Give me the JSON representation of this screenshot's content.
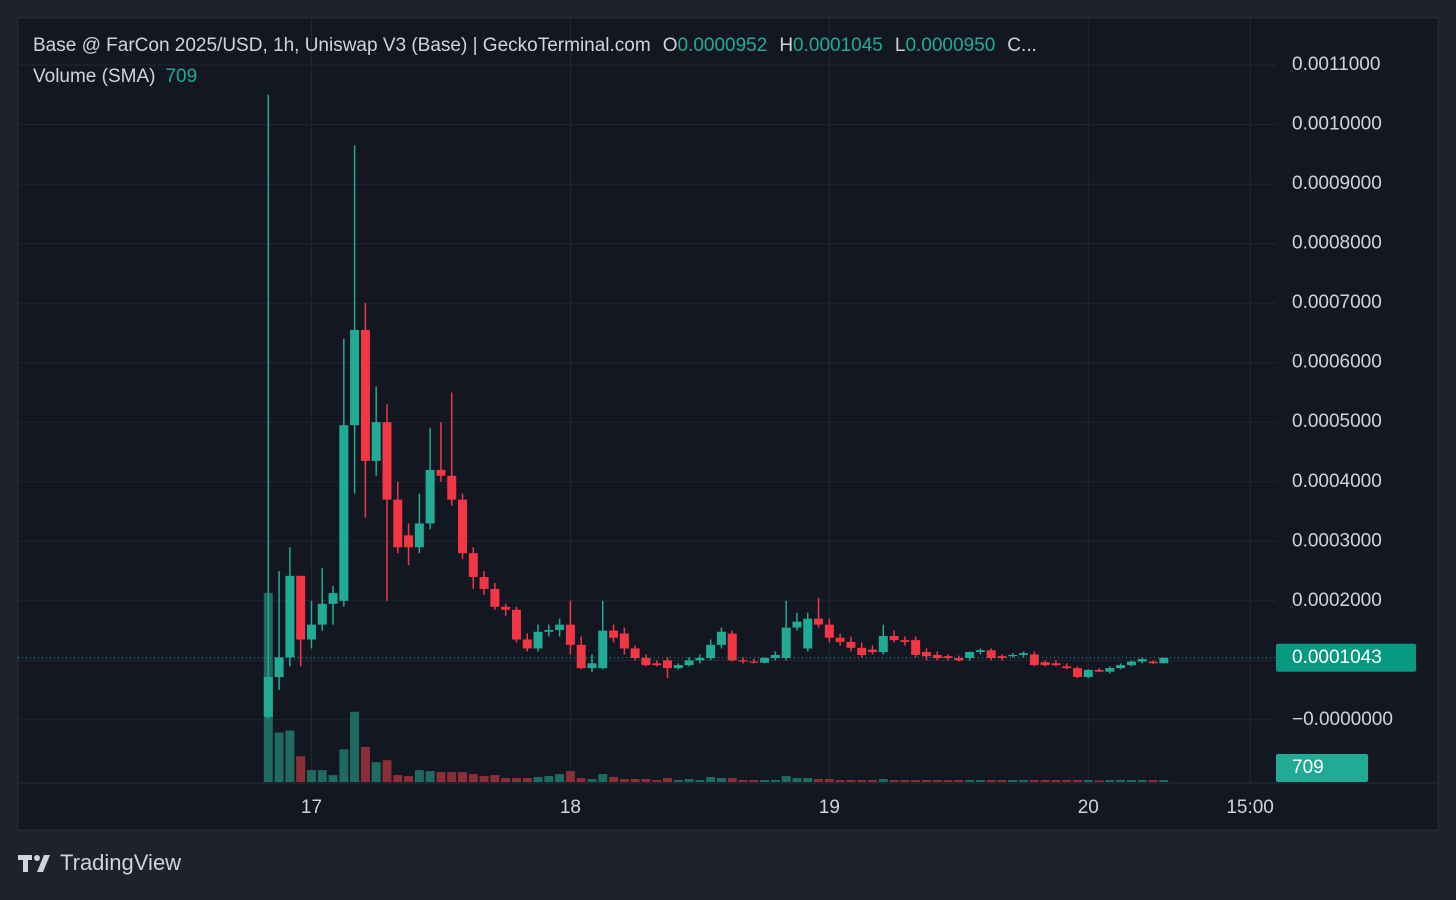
{
  "chart_data": {
    "type": "candlestick",
    "title": "Base @ FarCon 2025/USD, 1h, Uniswap V3 (Base) | GeckoTerminal.com",
    "ohlc_legend": [
      {
        "key": "O",
        "value": 9.52e-05,
        "label": "0.0000952"
      },
      {
        "key": "H",
        "value": 0.0001045,
        "label": "0.0001045"
      },
      {
        "key": "L",
        "value": 9.5e-05,
        "label": "0.0000950"
      },
      {
        "key": "C..."
      }
    ],
    "volume_title": "Volume (SMA)",
    "volume_sma": 709,
    "last_price": {
      "value": 0.0001043,
      "label": "0.0001043"
    },
    "up_color": "#22ab94",
    "down_color": "#f23645",
    "volume_up_color": "#1f6b61",
    "volume_down_color": "#8a2f38",
    "grid": true,
    "xlim": [
      -27.2,
      89.4
    ],
    "xticks": [
      {
        "value": 0,
        "label": "17"
      },
      {
        "value": 24,
        "label": "18"
      },
      {
        "value": 48,
        "label": "19"
      },
      {
        "value": 72,
        "label": "20"
      },
      {
        "value": 87,
        "label": "15:00"
      }
    ],
    "ylim": [
      -0.000106,
      0.001179
    ],
    "yticks": [
      {
        "value": 0,
        "label": "−0.0000000"
      },
      {
        "value": 0.0001,
        "label": "0.0001000"
      },
      {
        "value": 0.0002,
        "label": "0.0002000"
      },
      {
        "value": 0.0003,
        "label": "0.0003000"
      },
      {
        "value": 0.0004,
        "label": "0.0004000"
      },
      {
        "value": 0.0005,
        "label": "0.0005000"
      },
      {
        "value": 0.0006,
        "label": "0.0006000"
      },
      {
        "value": 0.0007,
        "label": "0.0007000"
      },
      {
        "value": 0.0008,
        "label": "0.0008000"
      },
      {
        "value": 0.0009,
        "label": "0.0009000"
      },
      {
        "value": 0.001,
        "label": "0.0010000"
      },
      {
        "value": 0.0011,
        "label": "0.0011000"
      }
    ],
    "vlim": [
      0,
      10000
    ],
    "x": [
      -4,
      -3,
      -2,
      -1,
      0,
      1,
      2,
      3,
      4,
      5,
      6,
      7,
      8,
      9,
      10,
      11,
      12,
      13,
      14,
      15,
      16,
      17,
      18,
      19,
      20,
      21,
      22,
      23,
      24,
      25,
      26,
      27,
      28,
      29,
      30,
      31,
      32,
      33,
      34,
      35,
      36,
      37,
      38,
      39,
      40,
      41,
      42,
      43,
      44,
      45,
      46,
      47,
      48,
      49,
      50,
      51,
      52,
      53,
      54,
      55,
      56,
      57,
      58,
      59,
      60,
      61,
      62,
      63,
      64,
      65,
      66,
      67,
      68,
      69,
      70,
      71,
      72,
      73,
      74,
      75,
      76,
      77,
      78,
      79
    ],
    "open": [
      5e-06,
      7.2e-05,
      0.000105,
      0.000242,
      0.000135,
      0.00016,
      0.000195,
      0.0002,
      0.000495,
      0.000655,
      0.000435,
      0.0005,
      0.00037,
      0.00031,
      0.00029,
      0.00033,
      0.00042,
      0.00041,
      0.00037,
      0.00028,
      0.00024,
      0.00022,
      0.00019,
      0.000185,
      0.000135,
      0.00012,
      0.000148,
      0.000151,
      0.00016,
      0.000126,
      8.7e-05,
      8.7e-05,
      0.00015,
      0.000145,
      0.00012,
      0.000104,
      9.5e-05,
      0.0001,
      8.7e-05,
      9.2e-05,
      0.0001,
      0.000104,
      0.000126,
      0.000145,
      0.0001,
      9.8e-05,
      9.6e-05,
      0.000104,
      0.000104,
      0.000155,
      0.00012,
      0.00017,
      0.00016,
      0.000138,
      0.000131,
      0.000121,
      0.000118,
      0.000114,
      0.000141,
      0.000134,
      0.000134,
      0.000114,
      0.000109,
      0.000107,
      0.000104,
      0.000104,
      0.000114,
      0.000117,
      0.000107,
      0.000107,
      0.000109,
      0.00011,
      9.7e-05,
      9.5e-05,
      9e-05,
      8.7e-05,
      7.2e-05,
      8.4e-05,
      8.1e-05,
      8.7e-05,
      9.2e-05,
      9.8e-05,
      9.8e-05,
      9.52e-05
    ],
    "high": [
      0.00105,
      0.00025,
      0.00029,
      0.000242,
      0.0002,
      0.000255,
      0.000225,
      0.00064,
      0.000965,
      0.0007,
      0.00056,
      0.00053,
      0.0004,
      0.00033,
      0.00038,
      0.00049,
      0.0005,
      0.00055,
      0.00038,
      0.00029,
      0.00025,
      0.00023,
      0.000195,
      0.00019,
      0.000145,
      0.00016,
      0.00016,
      0.00017,
      0.0002,
      0.00014,
      0.00011,
      0.0002,
      0.00016,
      0.000155,
      0.000125,
      0.00011,
      0.0001,
      0.000105,
      9.5e-05,
      0.000105,
      0.00011,
      0.000135,
      0.000155,
      0.00015,
      0.000105,
      0.000102,
      0.000105,
      0.000115,
      0.0002,
      0.00018,
      0.00018,
      0.000205,
      0.00017,
      0.000145,
      0.00014,
      0.00013,
      0.000125,
      0.00016,
      0.00015,
      0.00014,
      0.00014,
      0.00012,
      0.000115,
      0.00011,
      0.000108,
      0.000115,
      0.00012,
      0.00012,
      0.00011,
      0.000112,
      0.000115,
      0.000115,
      0.0001,
      0.0001,
      9.5e-05,
      9e-05,
      8.5e-05,
      8.7e-05,
      9e-05,
      9.5e-05,
      0.0001,
      0.000105,
      0.0001,
      0.0001045
    ],
    "low": [
      2e-06,
      5e-05,
      9e-05,
      9e-05,
      0.00012,
      0.00015,
      0.00016,
      0.00019,
      0.00038,
      0.00034,
      0.00041,
      0.0002,
      0.00028,
      0.00026,
      0.00028,
      0.00032,
      0.0004,
      0.00036,
      0.00027,
      0.00022,
      0.00021,
      0.000185,
      0.000175,
      0.00013,
      0.000115,
      0.000115,
      0.00014,
      0.00014,
      0.00011,
      8.5e-05,
      8e-05,
      8.5e-05,
      0.00013,
      0.00011,
      0.0001,
      9e-05,
      9e-05,
      7e-05,
      8.5e-05,
      9e-05,
      9.5e-05,
      0.0001,
      0.00012,
      9.8e-05,
      9.5e-05,
      9.5e-05,
      9.5e-05,
      0.0001,
      0.0001,
      0.00015,
      0.000115,
      0.000155,
      0.00013,
      0.000125,
      0.000115,
      0.000105,
      0.00011,
      0.00011,
      0.00013,
      0.000125,
      0.000105,
      0.0001,
      0.0001,
      0.0001,
      9.8e-05,
      0.0001,
      0.00011,
      0.0001,
      0.0001,
      0.000105,
      0.000105,
      9e-05,
      9e-05,
      9e-05,
      8.5e-05,
      7e-05,
      7e-05,
      8e-05,
      7.8e-05,
      8.5e-05,
      9e-05,
      9.5e-05,
      9.4e-05,
      9.5e-05
    ],
    "close": [
      7.2e-05,
      0.000105,
      0.000242,
      0.000135,
      0.00016,
      0.000195,
      0.000213,
      0.000495,
      0.000655,
      0.000435,
      0.0005,
      0.00037,
      0.00029,
      0.00029,
      0.00033,
      0.00042,
      0.00041,
      0.00037,
      0.00028,
      0.00024,
      0.00022,
      0.00019,
      0.000185,
      0.000135,
      0.00012,
      0.000148,
      0.000151,
      0.00016,
      0.000126,
      8.7e-05,
      9.5e-05,
      0.00015,
      0.000138,
      0.00012,
      0.000104,
      9.2e-05,
      9.2e-05,
      8.7e-05,
      9.2e-05,
      0.0001,
      0.000104,
      0.000126,
      0.000148,
      0.0001,
      9.8e-05,
      9.6e-05,
      0.000104,
      0.000109,
      0.000155,
      0.000165,
      0.00017,
      0.00016,
      0.000138,
      0.000131,
      0.000121,
      0.000109,
      0.000114,
      0.000141,
      0.000134,
      0.000131,
      0.000109,
      0.000107,
      0.000104,
      0.000104,
      0.0001,
      0.000114,
      0.000117,
      0.000104,
      0.000104,
      0.000109,
      0.000112,
      9.2e-05,
      9.2e-05,
      9.2e-05,
      8.7e-05,
      7.2e-05,
      8.4e-05,
      8.1e-05,
      8.7e-05,
      9.2e-05,
      9.8e-05,
      0.000102,
      9.52e-05,
      0.0001043
    ],
    "volume": [
      9550,
      2500,
      2600,
      1300,
      600,
      600,
      350,
      1650,
      3550,
      1770,
      1000,
      1100,
      350,
      300,
      600,
      550,
      500,
      500,
      500,
      400,
      300,
      350,
      200,
      200,
      200,
      250,
      300,
      400,
      550,
      200,
      150,
      400,
      250,
      150,
      150,
      150,
      100,
      200,
      100,
      150,
      100,
      250,
      200,
      200,
      100,
      100,
      100,
      100,
      300,
      200,
      200,
      150,
      150,
      100,
      100,
      100,
      100,
      150,
      100,
      100,
      100,
      100,
      100,
      100,
      100,
      100,
      100,
      100,
      100,
      100,
      100,
      100,
      100,
      100,
      100,
      100,
      100,
      80,
      100,
      100,
      100,
      100,
      100,
      100
    ]
  },
  "footer": {
    "brand": "TradingView"
  }
}
